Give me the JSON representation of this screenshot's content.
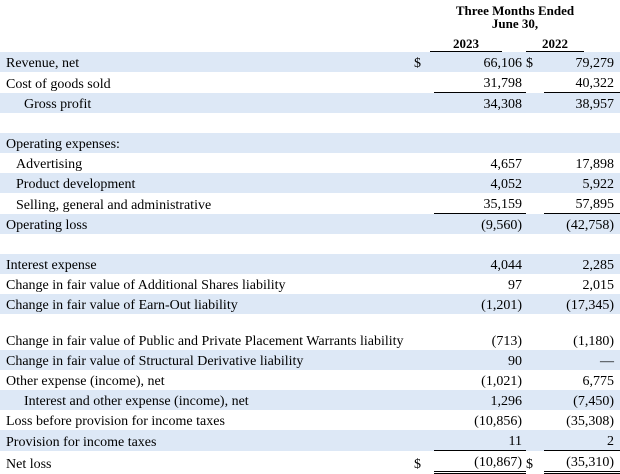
{
  "header": {
    "title": [
      "Three Months Ended",
      "June 30,"
    ],
    "years": [
      "2023",
      "2022"
    ]
  },
  "rows": [
    {
      "label": "Revenue, net",
      "currency_2023": "$",
      "v2023": "66,106",
      "currency_2022": "$",
      "v2022": "79,279"
    },
    {
      "label": "Cost of goods sold",
      "v2023": "31,798",
      "v2022": "40,322"
    },
    {
      "label": "Gross profit",
      "v2023": "34,308",
      "v2022": "38,957"
    },
    {
      "label": "Operating expenses:"
    },
    {
      "label": "Advertising",
      "v2023": "4,657",
      "v2022": "17,898"
    },
    {
      "label": "Product development",
      "v2023": "4,052",
      "v2022": "5,922"
    },
    {
      "label": "Selling, general and administrative",
      "v2023": "35,159",
      "v2022": "57,895"
    },
    {
      "label": "Operating loss",
      "v2023": "(9,560)",
      "v2022": "(42,758)"
    },
    {
      "label": "Interest expense",
      "v2023": "4,044",
      "v2022": "2,285"
    },
    {
      "label": "Change in fair value of Additional Shares liability",
      "v2023": "97",
      "v2022": "2,015"
    },
    {
      "label": "Change in fair value of Earn-Out liability",
      "v2023": "(1,201)",
      "v2022": "(17,345)"
    },
    {
      "label": "Change in fair value of Public and Private Placement Warrants liability",
      "v2023": "(713)",
      "v2022": "(1,180)"
    },
    {
      "label": "Change in fair value of Structural Derivative liability",
      "v2023": "90",
      "v2022": "—"
    },
    {
      "label": "Other expense (income), net",
      "v2023": "(1,021)",
      "v2022": "6,775"
    },
    {
      "label": "Interest and other expense (income), net",
      "v2023": "1,296",
      "v2022": "(7,450)"
    },
    {
      "label": "Loss before provision for income taxes",
      "v2023": "(10,856)",
      "v2022": "(35,308)"
    },
    {
      "label": "Provision for income taxes",
      "v2023": "11",
      "v2022": "2"
    },
    {
      "label": "Net loss",
      "currency_2023": "$",
      "v2023": "(10,867)",
      "currency_2022": "$",
      "v2022": "(35,310)"
    }
  ]
}
